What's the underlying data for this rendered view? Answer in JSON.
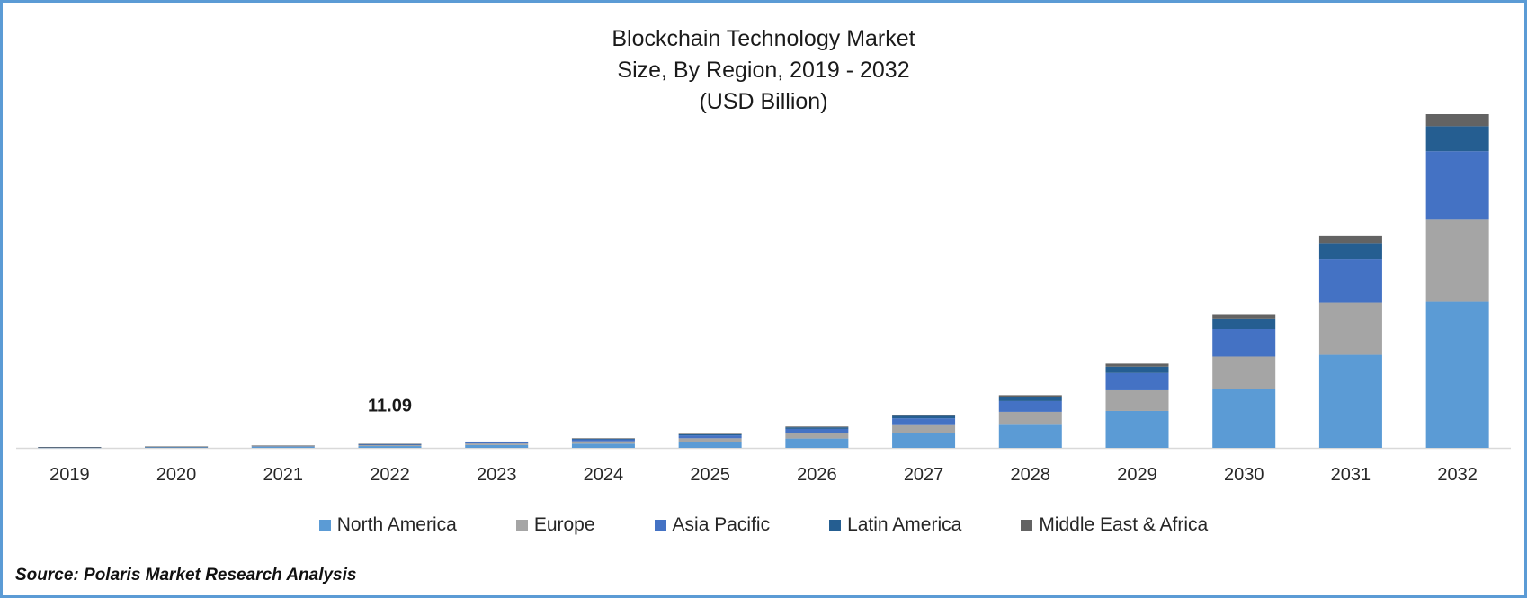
{
  "title": {
    "line1": "Blockchain Technology Market",
    "line2": "Size, By Region, 2019 - 2032",
    "line3": "(USD Billion)"
  },
  "source": "Source: Polaris Market Research Analysis",
  "chart_data": {
    "type": "bar",
    "stacked": true,
    "categories": [
      "2019",
      "2020",
      "2021",
      "2022",
      "2023",
      "2024",
      "2025",
      "2026",
      "2027",
      "2028",
      "2029",
      "2030",
      "2031",
      "2032"
    ],
    "series": [
      {
        "name": "North America",
        "color": "#5b9bd5",
        "values": [
          1.0,
          1.6,
          2.8,
          4.9,
          7.8,
          11.7,
          17.1,
          26.0,
          40.5,
          64.2,
          102.6,
          162.5,
          258.6,
          406.1
        ]
      },
      {
        "name": "Europe",
        "color": "#a5a5a5",
        "values": [
          0.6,
          0.9,
          1.5,
          2.7,
          4.3,
          6.5,
          9.6,
          14.6,
          22.7,
          36.0,
          57.5,
          91.3,
          145.0,
          228.0
        ]
      },
      {
        "name": "Asia Pacific",
        "color": "#4472c4",
        "values": [
          0.5,
          0.8,
          1.3,
          2.3,
          3.6,
          5.5,
          8.0,
          12.1,
          18.9,
          30.0,
          47.9,
          76.2,
          121.2,
          190.4
        ]
      },
      {
        "name": "Latin America",
        "color": "#255e91",
        "values": [
          0.2,
          0.3,
          0.5,
          0.8,
          1.3,
          2.0,
          2.9,
          4.4,
          6.9,
          11.0,
          17.6,
          27.9,
          44.3,
          69.6
        ]
      },
      {
        "name": "Middle East & Africa",
        "color": "#636363",
        "values": [
          0.15,
          0.2,
          0.3,
          0.4,
          0.6,
          1.0,
          1.4,
          2.1,
          3.3,
          5.3,
          8.4,
          13.4,
          21.2,
          33.4
        ]
      }
    ],
    "annotations": [
      {
        "category": "2022",
        "label": "11.09"
      }
    ],
    "ylim": [
      0,
      1000
    ],
    "grid": false,
    "y_axis_visible": false,
    "legend_position": "bottom"
  }
}
